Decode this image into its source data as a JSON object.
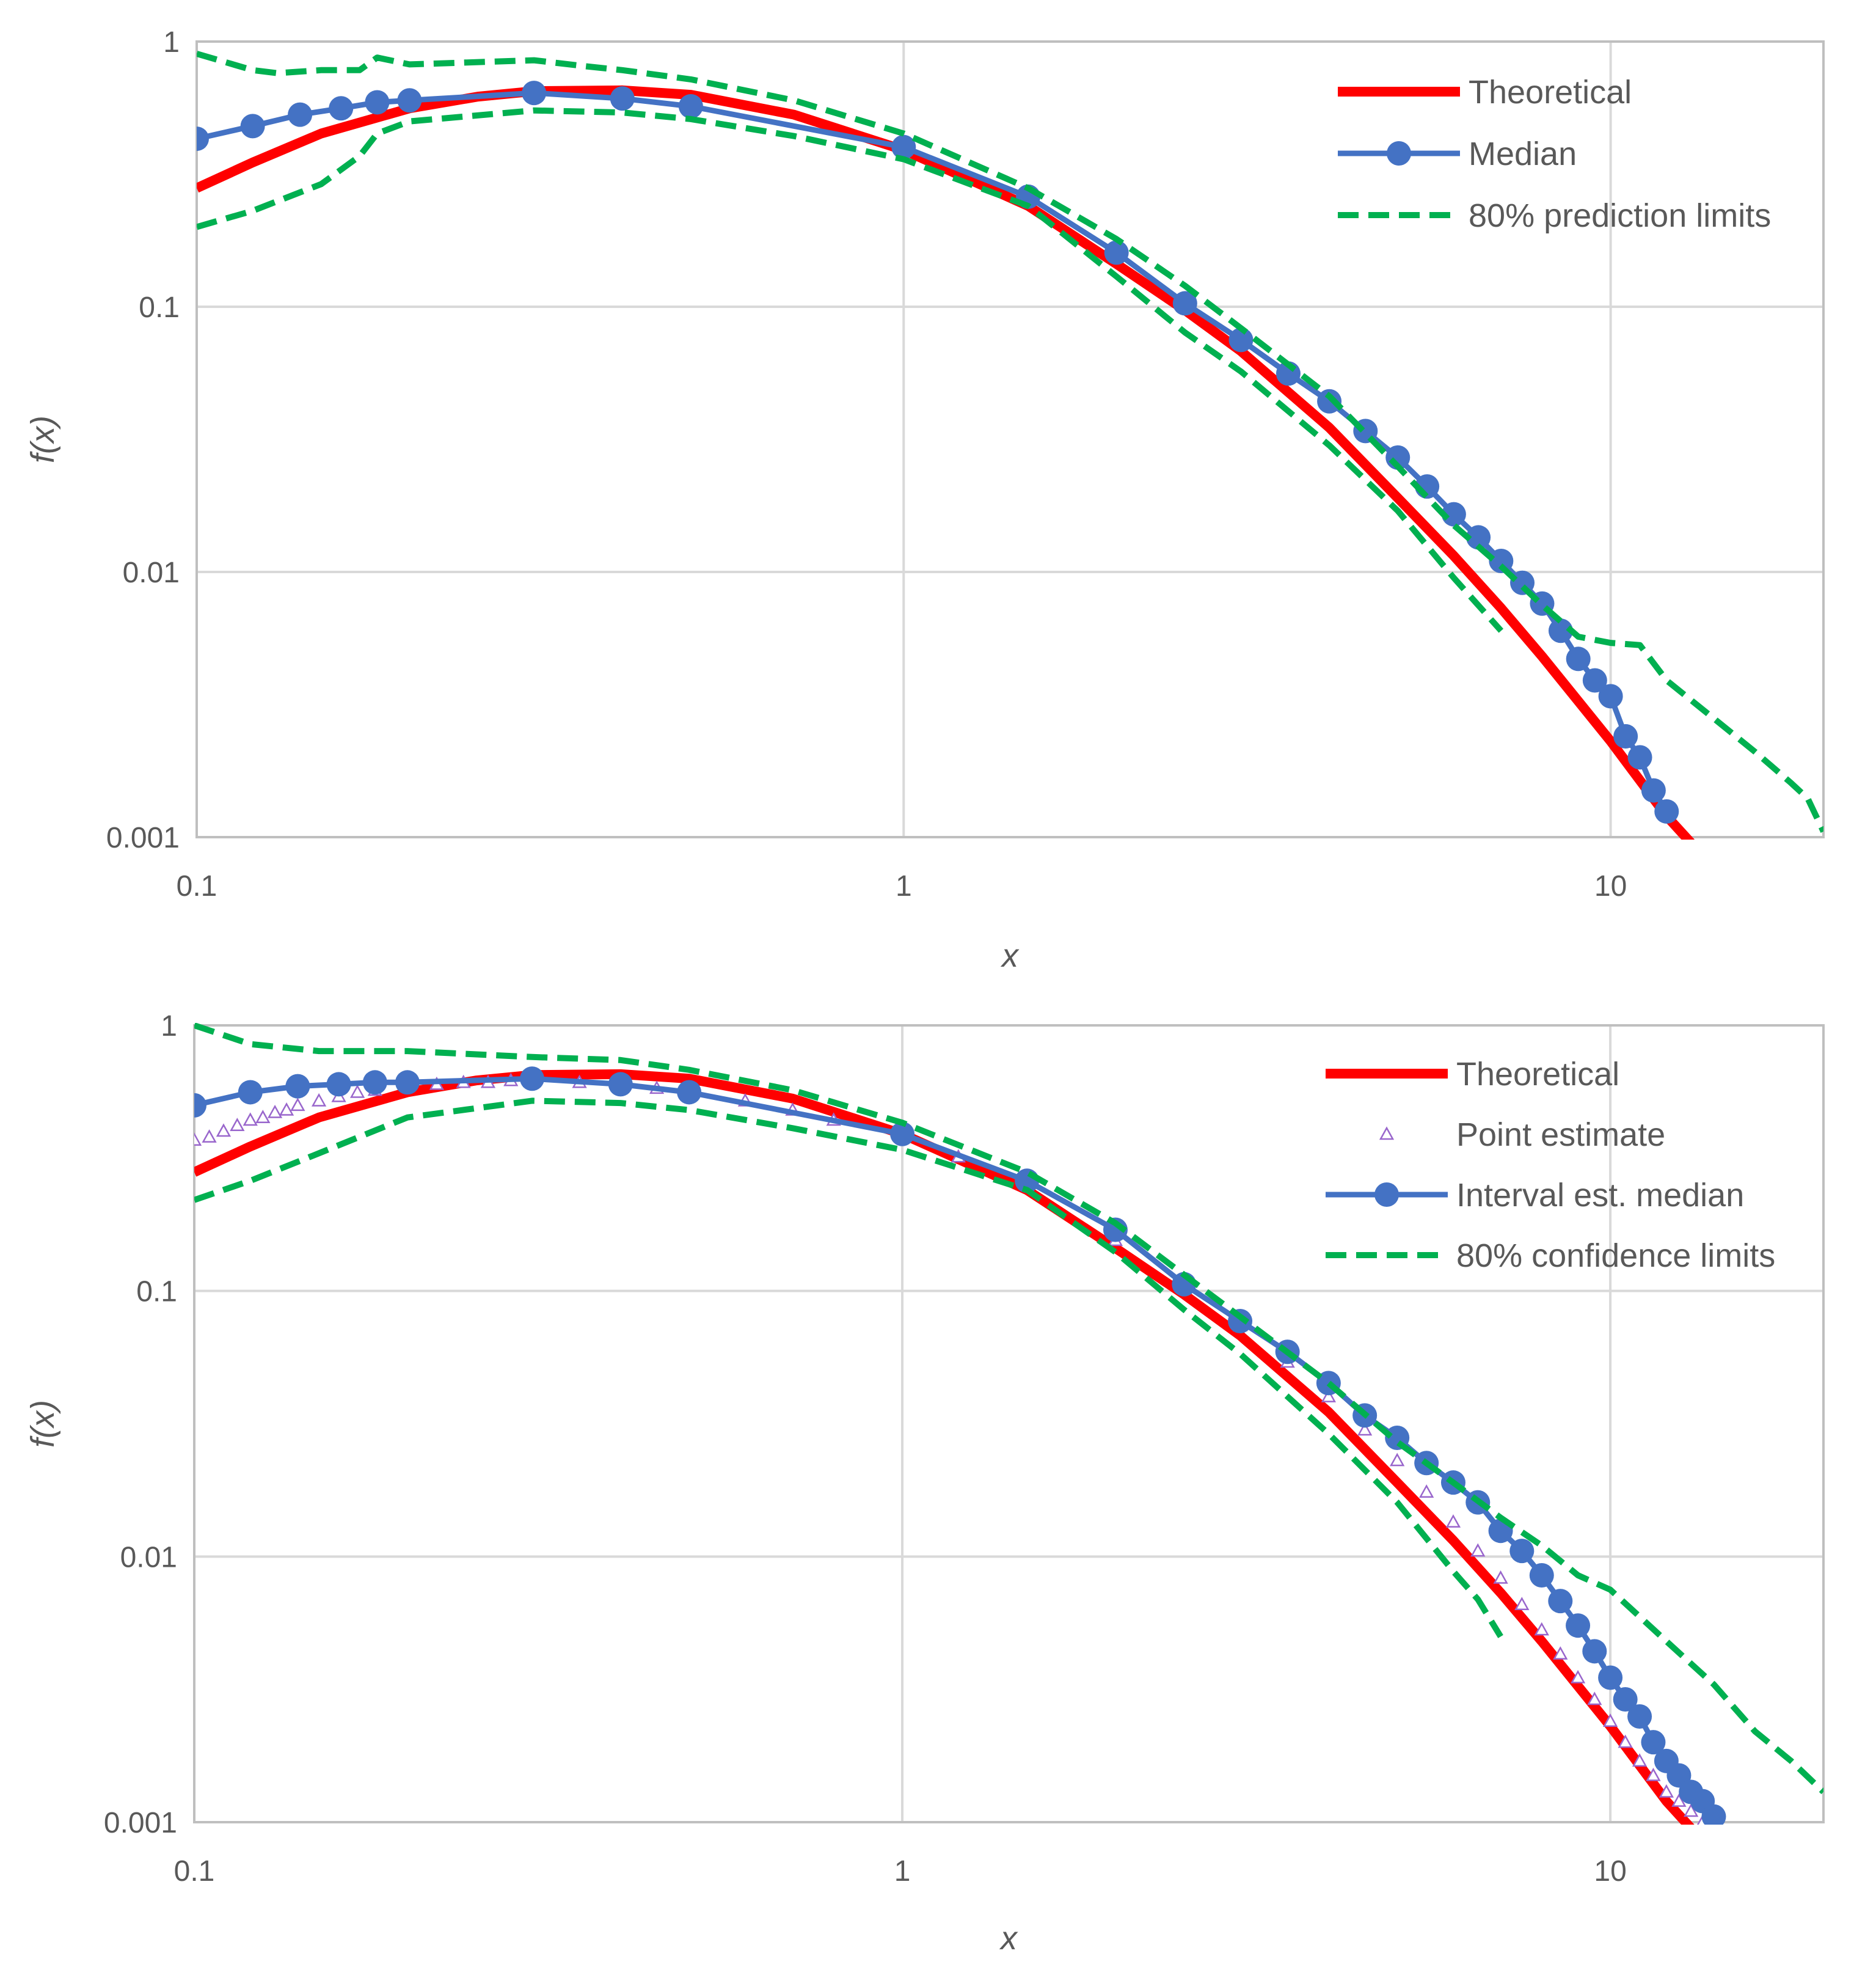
{
  "chart_data": [
    {
      "type": "line",
      "scale": "log-log",
      "xlabel": "x",
      "ylabel": "f(x)",
      "xlim": [
        0.1,
        20
      ],
      "ylim": [
        0.001,
        1
      ],
      "xticks": [
        {
          "value": 0.1,
          "label": "0.1"
        },
        {
          "value": 1,
          "label": "1"
        },
        {
          "value": 10,
          "label": "10"
        }
      ],
      "yticks": [
        {
          "value": 1,
          "label": "1"
        },
        {
          "value": 0.1,
          "label": "0.1"
        },
        {
          "value": 0.01,
          "label": "0.01"
        },
        {
          "value": 0.001,
          "label": "0.001"
        }
      ],
      "grid": true,
      "legend_position": "top-right",
      "colors": {
        "theoretical": "#ff0000",
        "median": "#4472c4",
        "limits": "#00b050",
        "grid": "#d9d9d9",
        "axis": "#bfbfbf"
      },
      "series": [
        {
          "name": "Theoretical",
          "style": "solid-thick",
          "color": "#ff0000",
          "x": [
            0.1,
            0.12,
            0.15,
            0.2,
            0.25,
            0.3,
            0.4,
            0.5,
            0.7,
            1,
            1.5,
            2,
            2.5,
            3,
            4,
            5,
            6,
            7,
            8,
            10,
            12,
            13.5
          ],
          "y": [
            0.28,
            0.35,
            0.45,
            0.56,
            0.62,
            0.65,
            0.655,
            0.63,
            0.53,
            0.39,
            0.24,
            0.145,
            0.097,
            0.068,
            0.035,
            0.019,
            0.0115,
            0.0073,
            0.0048,
            0.0023,
            0.0012,
            0.00085
          ]
        },
        {
          "name": "Median",
          "style": "line-markers",
          "color": "#4472c4",
          "x": [
            0.1,
            0.12,
            0.14,
            0.16,
            0.18,
            0.2,
            0.3,
            0.4,
            0.5,
            1,
            1.5,
            2,
            2.5,
            3,
            3.5,
            4,
            4.5,
            5,
            5.5,
            6,
            6.5,
            7,
            7.5,
            8,
            8.5,
            9,
            9.5,
            10,
            10.5,
            11,
            11.5,
            12
          ],
          "y": [
            0.43,
            0.48,
            0.53,
            0.56,
            0.59,
            0.6,
            0.64,
            0.61,
            0.57,
            0.4,
            0.26,
            0.16,
            0.103,
            0.075,
            0.056,
            0.044,
            0.034,
            0.027,
            0.021,
            0.0165,
            0.0135,
            0.011,
            0.0091,
            0.0076,
            0.006,
            0.0047,
            0.0039,
            0.0034,
            0.0024,
            0.002,
            0.0015,
            0.00125
          ]
        },
        {
          "name": "80% prediction limits",
          "style": "dashed",
          "color": "#00b050",
          "role": "upper",
          "x": [
            0.1,
            0.12,
            0.13,
            0.15,
            0.17,
            0.18,
            0.2,
            0.3,
            0.35,
            0.4,
            0.5,
            0.7,
            1,
            1.5,
            2,
            2.5,
            3,
            4,
            5,
            6,
            7,
            8,
            9,
            10,
            11,
            12,
            14,
            16,
            18,
            19,
            20
          ],
          "y": [
            0.9,
            0.78,
            0.76,
            0.78,
            0.78,
            0.87,
            0.82,
            0.85,
            0.81,
            0.78,
            0.72,
            0.6,
            0.45,
            0.28,
            0.18,
            0.12,
            0.083,
            0.046,
            0.025,
            0.015,
            0.0105,
            0.0075,
            0.0057,
            0.0054,
            0.0053,
            0.0039,
            0.0028,
            0.0021,
            0.0016,
            0.0014,
            0.00105
          ]
        },
        {
          "name": "80% prediction limits (lower)",
          "style": "dashed",
          "color": "#00b050",
          "role": "lower",
          "x": [
            0.1,
            0.12,
            0.15,
            0.17,
            0.18,
            0.2,
            0.3,
            0.4,
            0.5,
            0.7,
            1,
            1.5,
            2,
            2.5,
            3,
            4,
            5,
            6,
            7
          ],
          "y": [
            0.2,
            0.23,
            0.29,
            0.37,
            0.45,
            0.5,
            0.55,
            0.54,
            0.51,
            0.44,
            0.36,
            0.24,
            0.13,
            0.08,
            0.057,
            0.03,
            0.017,
            0.0095,
            0.006
          ]
        }
      ],
      "legend": [
        {
          "label": "Theoretical",
          "key": "theoretical"
        },
        {
          "label": "Median",
          "key": "median"
        },
        {
          "label": "80% prediction limits",
          "key": "limits"
        }
      ]
    },
    {
      "type": "line",
      "scale": "log-log",
      "xlabel": "x",
      "ylabel": "f(x)",
      "xlim": [
        0.1,
        20
      ],
      "ylim": [
        0.001,
        1
      ],
      "xticks": [
        {
          "value": 0.1,
          "label": "0.1"
        },
        {
          "value": 1,
          "label": "1"
        },
        {
          "value": 10,
          "label": "10"
        }
      ],
      "yticks": [
        {
          "value": 1,
          "label": "1"
        },
        {
          "value": 0.1,
          "label": "0.1"
        },
        {
          "value": 0.01,
          "label": "0.01"
        },
        {
          "value": 0.001,
          "label": "0.001"
        }
      ],
      "grid": true,
      "legend_position": "top-right",
      "colors": {
        "theoretical": "#ff0000",
        "median": "#4472c4",
        "limits": "#00b050",
        "point": "#9966cc",
        "grid": "#d9d9d9",
        "axis": "#bfbfbf"
      },
      "series": [
        {
          "name": "Theoretical",
          "style": "solid-thick",
          "color": "#ff0000",
          "x": [
            0.1,
            0.12,
            0.15,
            0.2,
            0.25,
            0.3,
            0.4,
            0.5,
            0.7,
            1,
            1.5,
            2,
            2.5,
            3,
            4,
            5,
            6,
            7,
            8,
            10,
            12,
            13.5
          ],
          "y": [
            0.28,
            0.35,
            0.45,
            0.56,
            0.62,
            0.65,
            0.655,
            0.63,
            0.53,
            0.39,
            0.24,
            0.145,
            0.097,
            0.068,
            0.035,
            0.019,
            0.0115,
            0.0073,
            0.0048,
            0.0023,
            0.0012,
            0.00085
          ]
        },
        {
          "name": "Point estimate",
          "style": "triangle-markers",
          "color": "#9966cc",
          "x": [
            0.1,
            0.105,
            0.11,
            0.115,
            0.12,
            0.125,
            0.13,
            0.135,
            0.14,
            0.15,
            0.16,
            0.17,
            0.18,
            0.2,
            0.22,
            0.24,
            0.26,
            0.28,
            0.3,
            0.35,
            0.4,
            0.45,
            0.5,
            0.6,
            0.7,
            0.8,
            1,
            1.2,
            1.5,
            2,
            2.5,
            3,
            3.5,
            4,
            4.5,
            5,
            5.5,
            6,
            6.5,
            7,
            7.5,
            8,
            8.5,
            9,
            9.5,
            10,
            10.5,
            11,
            11.5,
            12,
            12.5,
            13,
            13.5,
            14
          ],
          "y": [
            0.37,
            0.38,
            0.4,
            0.42,
            0.44,
            0.45,
            0.47,
            0.48,
            0.5,
            0.52,
            0.54,
            0.56,
            0.57,
            0.59,
            0.6,
            0.61,
            0.61,
            0.62,
            0.62,
            0.61,
            0.6,
            0.58,
            0.56,
            0.52,
            0.48,
            0.44,
            0.38,
            0.32,
            0.25,
            0.155,
            0.105,
            0.074,
            0.054,
            0.04,
            0.03,
            0.023,
            0.0175,
            0.0135,
            0.0105,
            0.0083,
            0.0066,
            0.0053,
            0.0043,
            0.0035,
            0.0029,
            0.0024,
            0.002,
            0.0017,
            0.0015,
            0.0013,
            0.0012,
            0.0011,
            0.001,
            0.00095
          ]
        },
        {
          "name": "Interval est. median",
          "style": "line-markers",
          "color": "#4472c4",
          "x": [
            0.1,
            0.12,
            0.14,
            0.16,
            0.18,
            0.2,
            0.3,
            0.4,
            0.5,
            1,
            1.5,
            2,
            2.5,
            3,
            3.5,
            4,
            4.5,
            5,
            5.5,
            6,
            6.5,
            7,
            7.5,
            8,
            8.5,
            9,
            9.5,
            10,
            10.5,
            11,
            11.5,
            12,
            12.5,
            13,
            13.5,
            14
          ],
          "y": [
            0.5,
            0.56,
            0.59,
            0.6,
            0.61,
            0.61,
            0.63,
            0.6,
            0.56,
            0.39,
            0.26,
            0.17,
            0.106,
            0.077,
            0.059,
            0.045,
            0.034,
            0.028,
            0.0225,
            0.019,
            0.016,
            0.0125,
            0.0105,
            0.0085,
            0.0068,
            0.0055,
            0.0044,
            0.0035,
            0.0029,
            0.0025,
            0.002,
            0.0017,
            0.0015,
            0.0013,
            0.0012,
            0.00105
          ]
        },
        {
          "name": "80% confidence limits",
          "style": "dashed",
          "color": "#00b050",
          "role": "upper",
          "x": [
            0.1,
            0.12,
            0.15,
            0.2,
            0.3,
            0.4,
            0.5,
            0.7,
            1,
            1.5,
            2,
            2.5,
            3,
            4,
            5,
            6,
            7,
            8,
            9,
            10,
            12,
            14,
            16,
            18,
            20
          ],
          "y": [
            1.0,
            0.85,
            0.8,
            0.8,
            0.76,
            0.74,
            0.68,
            0.57,
            0.43,
            0.28,
            0.18,
            0.115,
            0.08,
            0.045,
            0.027,
            0.019,
            0.014,
            0.011,
            0.0085,
            0.0075,
            0.0048,
            0.0033,
            0.0022,
            0.0017,
            0.0013
          ]
        },
        {
          "name": "80% confidence limits (lower)",
          "style": "dashed",
          "color": "#00b050",
          "role": "lower",
          "x": [
            0.1,
            0.12,
            0.15,
            0.2,
            0.3,
            0.4,
            0.5,
            0.7,
            1,
            1.5,
            2,
            2.5,
            3,
            4,
            5,
            6,
            6.5,
            7
          ],
          "y": [
            0.22,
            0.26,
            0.33,
            0.45,
            0.52,
            0.51,
            0.48,
            0.41,
            0.34,
            0.24,
            0.14,
            0.085,
            0.058,
            0.029,
            0.016,
            0.0088,
            0.0069,
            0.005
          ]
        }
      ],
      "legend": [
        {
          "label": "Theoretical",
          "key": "theoretical"
        },
        {
          "label": "Point estimate",
          "key": "point"
        },
        {
          "label": "Interval est. median",
          "key": "median"
        },
        {
          "label": "80% confidence limits",
          "key": "limits"
        }
      ]
    }
  ]
}
